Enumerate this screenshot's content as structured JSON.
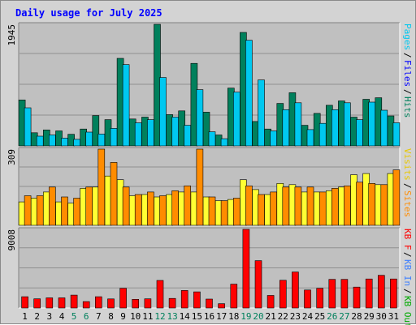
{
  "chart_data": {
    "type": "bar",
    "title": "Daily usage for July 2025",
    "days": [
      "1",
      "2",
      "3",
      "4",
      "5",
      "6",
      "7",
      "8",
      "9",
      "10",
      "11",
      "12",
      "13",
      "14",
      "15",
      "16",
      "17",
      "18",
      "19",
      "20",
      "21",
      "22",
      "23",
      "24",
      "25",
      "26",
      "27",
      "28",
      "29",
      "30",
      "31"
    ],
    "weekend_days": [
      "5",
      "6",
      "12",
      "13",
      "19",
      "20",
      "26",
      "27"
    ],
    "panels": [
      {
        "name": "hits-files-pages",
        "ymax_label": "1945",
        "ymax": 1945,
        "series": [
          {
            "name": "Hits",
            "color": "#00805c",
            "values": [
              735,
              210,
              255,
              240,
              185,
              270,
              485,
              420,
              1400,
              430,
              460,
              1945,
              500,
              560,
              1320,
              540,
              175,
              925,
              1815,
              390,
              270,
              680,
              850,
              330,
              520,
              650,
              720,
              460,
              745,
              770,
              480
            ]
          },
          {
            "name": "Files",
            "color": "#00c8f0",
            "values": [
              610,
              155,
              175,
              125,
              105,
              220,
              190,
              280,
              1300,
              370,
              420,
              1095,
              460,
              330,
              900,
              225,
              115,
              860,
              1690,
              1055,
              240,
              580,
              690,
              260,
              360,
              580,
              690,
              420,
              700,
              570,
              370
            ]
          }
        ],
        "legend": [
          {
            "label": "Pages",
            "color": "#00c8f0"
          },
          {
            "label": "Files",
            "color": "#0000ff"
          },
          {
            "label": "Hits",
            "color": "#00805c"
          }
        ]
      },
      {
        "name": "visits-sites",
        "ymax_label": "309",
        "ymax": 309,
        "series": [
          {
            "name": "Visits",
            "color": "#ffff33",
            "values": [
              95,
              110,
              135,
              95,
              90,
              150,
              155,
              200,
              185,
              120,
              125,
              115,
              125,
              135,
              135,
              115,
              100,
              105,
              185,
              145,
              125,
              170,
              165,
              135,
              135,
              140,
              155,
              205,
              210,
              165,
              210
            ]
          },
          {
            "name": "Sites",
            "color": "#ff8c00",
            "values": [
              120,
              120,
              155,
              115,
              110,
              155,
              309,
              255,
              155,
              125,
              135,
              120,
              140,
              160,
              309,
              115,
              100,
              110,
              160,
              125,
              135,
              155,
              155,
              155,
              135,
              150,
              160,
              175,
              170,
              165,
              225
            ]
          }
        ],
        "legend": [
          {
            "label": "Visits",
            "color": "#e8c800"
          },
          {
            "label": "Sites",
            "color": "#ff8c00"
          }
        ]
      },
      {
        "name": "kbytes",
        "ymax_label": "9008",
        "ymax": 9008,
        "series": [
          {
            "name": "KB F",
            "color": "#ff0000",
            "values": [
              1290,
              1050,
              1160,
              1160,
              1480,
              730,
              1290,
              1040,
              2260,
              990,
              1050,
              3160,
              1100,
              2010,
              1850,
              1020,
              490,
              2730,
              9008,
              5420,
              1440,
              3180,
              4120,
              2060,
              2260,
              3280,
              3280,
              2400,
              3320,
              3740,
              3320
            ]
          }
        ],
        "legend": [
          {
            "label": "KB F",
            "color": "#ff0000"
          },
          {
            "label": "KB In",
            "color": "#4080ff"
          },
          {
            "label": "KB Out",
            "color": "#00aa00"
          }
        ]
      }
    ],
    "grid": true
  }
}
